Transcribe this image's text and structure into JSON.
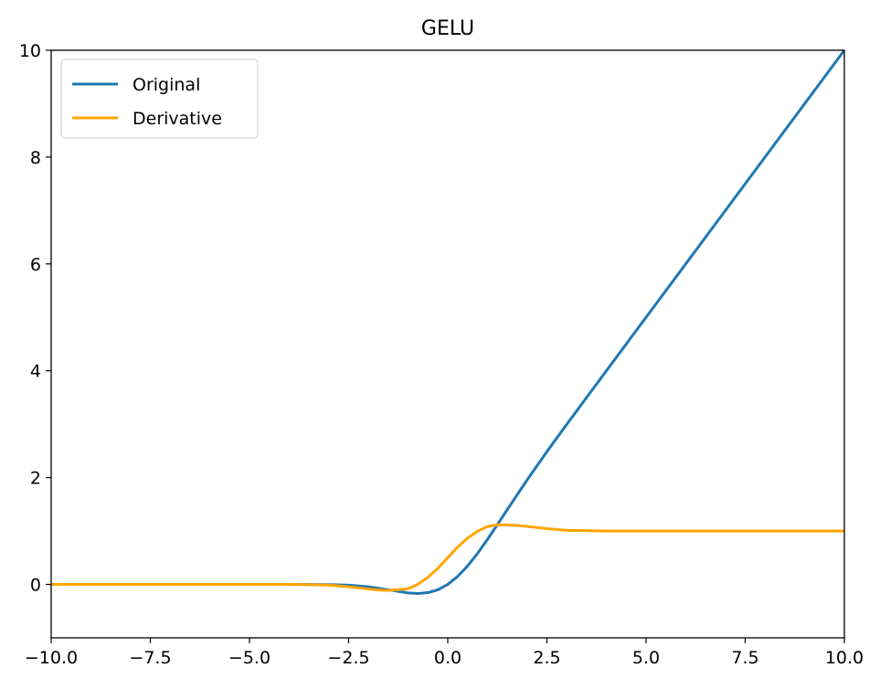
{
  "chart_data": {
    "type": "line",
    "title": "GELU",
    "xlabel": "",
    "ylabel": "",
    "xlim": [
      -10.0,
      10.0
    ],
    "ylim": [
      -1.0,
      10.0
    ],
    "x_ticks": [
      -10.0,
      -7.5,
      -5.0,
      -2.5,
      0.0,
      2.5,
      5.0,
      7.5,
      10.0
    ],
    "x_tick_labels": [
      "−10.0",
      "−7.5",
      "−5.0",
      "−2.5",
      "0.0",
      "2.5",
      "5.0",
      "7.5",
      "10.0"
    ],
    "y_ticks": [
      0,
      2,
      4,
      6,
      8,
      10
    ],
    "y_tick_labels": [
      "0",
      "2",
      "4",
      "6",
      "8",
      "10"
    ],
    "grid": false,
    "legend_position": "top-left",
    "series": [
      {
        "name": "Original",
        "color": "#1f77b4",
        "x": [
          -10,
          -8,
          -6,
          -4,
          -3,
          -2.5,
          -2,
          -1.5,
          -1,
          -0.75,
          -0.5,
          -0.25,
          0,
          0.25,
          0.5,
          0.75,
          1,
          1.25,
          1.5,
          2,
          2.5,
          3,
          4,
          5,
          6,
          7,
          8,
          9,
          10
        ],
        "y": [
          0,
          0,
          0,
          0,
          -0.004,
          -0.015,
          -0.045,
          -0.1,
          -0.159,
          -0.17,
          -0.154,
          -0.1,
          0,
          0.15,
          0.346,
          0.58,
          0.841,
          1.118,
          1.4,
          1.955,
          2.485,
          2.996,
          4.0,
          5.0,
          6.0,
          7.0,
          8.0,
          9.0,
          10.0
        ]
      },
      {
        "name": "Derivative",
        "color": "#ffa500",
        "x": [
          -10,
          -8,
          -6,
          -4,
          -3,
          -2.5,
          -2,
          -1.75,
          -1.5,
          -1.25,
          -1,
          -0.75,
          -0.5,
          -0.25,
          0,
          0.25,
          0.5,
          0.75,
          1,
          1.25,
          1.5,
          1.75,
          2,
          2.5,
          3,
          4,
          5,
          6,
          8,
          10
        ],
        "y": [
          0,
          0,
          0,
          0,
          -0.012,
          -0.044,
          -0.086,
          -0.104,
          -0.112,
          -0.097,
          -0.083,
          0.004,
          0.133,
          0.3,
          0.5,
          0.7,
          0.867,
          0.996,
          1.083,
          1.117,
          1.112,
          1.104,
          1.086,
          1.044,
          1.012,
          1.0,
          1.0,
          1.0,
          1.0,
          1.0
        ]
      }
    ]
  }
}
